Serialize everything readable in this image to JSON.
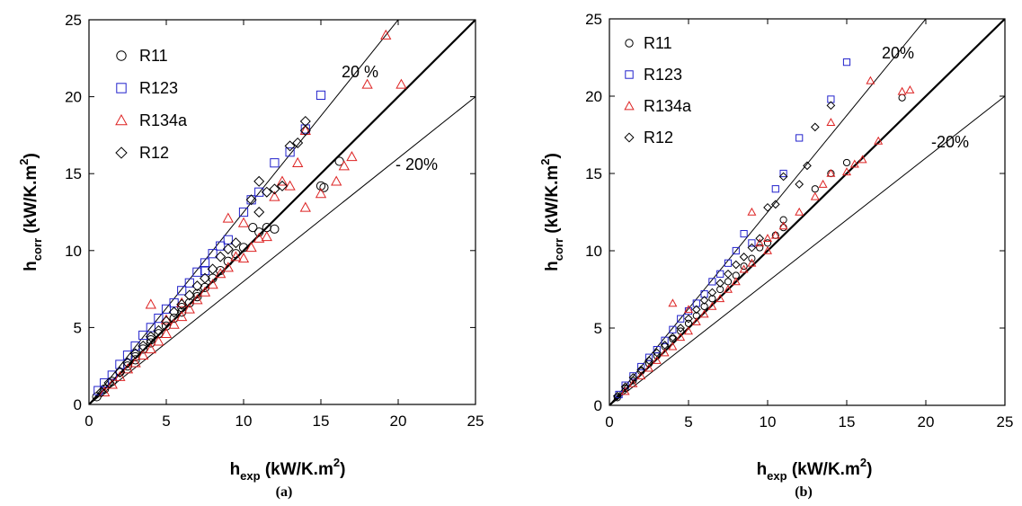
{
  "chart_data": [
    {
      "type": "scatter",
      "panel_label": "(a)",
      "xlabel": {
        "main": "h",
        "sub": "exp",
        "unit": " (kW/K.m",
        "sup": "2",
        "close": ")"
      },
      "ylabel": {
        "main": "h",
        "sub": "corr",
        "unit": " (kW/K.m",
        "sup": "2",
        "close": ")"
      },
      "xlim": [
        0,
        25
      ],
      "ylim": [
        0,
        25
      ],
      "xticks": [
        "0",
        "5",
        "10",
        "15",
        "20",
        "25"
      ],
      "yticks": [
        "0",
        "5",
        "10",
        "15",
        "20",
        "25"
      ],
      "grid": false,
      "legend_placement": "top-left",
      "reference_lines": [
        {
          "slope": 1.0,
          "style": "thick"
        },
        {
          "slope": 1.25,
          "style": "thin",
          "label": "20 %"
        },
        {
          "slope": 0.8,
          "style": "thin",
          "label": "- 20%"
        }
      ],
      "series": [
        {
          "name": "R11",
          "marker": "circle",
          "color": "#000000",
          "points": [
            [
              0.5,
              0.5
            ],
            [
              1,
              1
            ],
            [
              1.5,
              1.5
            ],
            [
              2,
              2.1
            ],
            [
              2.5,
              2.5
            ],
            [
              3,
              3.1
            ],
            [
              3.5,
              3.6
            ],
            [
              4,
              4
            ],
            [
              4.5,
              4.6
            ],
            [
              5,
              5.1
            ],
            [
              5.5,
              5.6
            ],
            [
              6,
              6.3
            ],
            [
              6.5,
              6.6
            ],
            [
              7,
              7.2
            ],
            [
              7.5,
              7.6
            ],
            [
              8,
              8.2
            ],
            [
              8.5,
              8.7
            ],
            [
              9,
              9.3
            ],
            [
              9.5,
              9.8
            ],
            [
              10,
              10.2
            ],
            [
              10.6,
              11.5
            ],
            [
              11,
              11.2
            ],
            [
              11.5,
              11.5
            ],
            [
              12,
              11.4
            ],
            [
              15,
              14.2
            ],
            [
              15.2,
              14.1
            ],
            [
              16.2,
              15.8
            ],
            [
              3,
              2.9
            ],
            [
              4,
              4.2
            ],
            [
              6,
              6
            ],
            [
              7,
              7
            ]
          ]
        },
        {
          "name": "R123",
          "marker": "square",
          "color": "#2222cc",
          "points": [
            [
              0.6,
              0.9
            ],
            [
              1,
              1.4
            ],
            [
              1.5,
              1.9
            ],
            [
              2,
              2.6
            ],
            [
              2.5,
              3.2
            ],
            [
              3,
              3.8
            ],
            [
              3.5,
              4.5
            ],
            [
              4,
              5
            ],
            [
              4.5,
              5.6
            ],
            [
              5,
              6.2
            ],
            [
              5.5,
              6.6
            ],
            [
              6,
              7.4
            ],
            [
              6.5,
              7.9
            ],
            [
              7,
              8.6
            ],
            [
              7.5,
              9.2
            ],
            [
              8,
              9.8
            ],
            [
              8.5,
              10.3
            ],
            [
              9,
              10.7
            ],
            [
              10,
              12.5
            ],
            [
              10.5,
              13.3
            ],
            [
              11,
              13.8
            ],
            [
              12,
              15.7
            ],
            [
              13,
              16.4
            ],
            [
              14,
              17.9
            ],
            [
              15,
              20.1
            ],
            [
              7.5,
              8.7
            ]
          ]
        },
        {
          "name": "R134a",
          "marker": "triangle",
          "color": "#dd2222",
          "points": [
            [
              1,
              0.8
            ],
            [
              1.5,
              1.3
            ],
            [
              2,
              1.8
            ],
            [
              2.5,
              2.3
            ],
            [
              3,
              2.7
            ],
            [
              3.5,
              3.2
            ],
            [
              4,
              3.6
            ],
            [
              4.5,
              4.1
            ],
            [
              5,
              4.6
            ],
            [
              5.5,
              5.2
            ],
            [
              6,
              5.7
            ],
            [
              6.5,
              6.2
            ],
            [
              7,
              6.8
            ],
            [
              7.5,
              7.3
            ],
            [
              8,
              7.8
            ],
            [
              8.5,
              8.5
            ],
            [
              9,
              8.9
            ],
            [
              9.5,
              9.6
            ],
            [
              10,
              9.5
            ],
            [
              10.5,
              10.2
            ],
            [
              11,
              10.8
            ],
            [
              11.5,
              10.9
            ],
            [
              12,
              13.5
            ],
            [
              12.5,
              14.5
            ],
            [
              13,
              14.2
            ],
            [
              14,
              12.8
            ],
            [
              15,
              13.7
            ],
            [
              16,
              14.5
            ],
            [
              16.5,
              15.5
            ],
            [
              17,
              16.1
            ],
            [
              18,
              20.8
            ],
            [
              19.2,
              24
            ],
            [
              20.2,
              20.8
            ],
            [
              4,
              6.5
            ],
            [
              5,
              5.5
            ],
            [
              6,
              6.6
            ],
            [
              9,
              12.1
            ],
            [
              10,
              11.8
            ],
            [
              13.5,
              15.7
            ],
            [
              14,
              17.8
            ]
          ]
        },
        {
          "name": "R12",
          "marker": "diamond",
          "color": "#000000",
          "points": [
            [
              0.8,
              0.8
            ],
            [
              1.3,
              1.4
            ],
            [
              2,
              2.1
            ],
            [
              2.5,
              2.7
            ],
            [
              3,
              3.3
            ],
            [
              3.5,
              3.8
            ],
            [
              4,
              4.4
            ],
            [
              4.5,
              4.8
            ],
            [
              5,
              5.4
            ],
            [
              5.5,
              6
            ],
            [
              6,
              6.5
            ],
            [
              6.5,
              7.1
            ],
            [
              7,
              7.7
            ],
            [
              7.5,
              8.2
            ],
            [
              8,
              8.8
            ],
            [
              8.5,
              9.6
            ],
            [
              9,
              10.1
            ],
            [
              9.5,
              10.5
            ],
            [
              10.5,
              13.3
            ],
            [
              11,
              14.5
            ],
            [
              11.5,
              13.8
            ],
            [
              12,
              14
            ],
            [
              12.5,
              14.2
            ],
            [
              13,
              16.8
            ],
            [
              13.5,
              17
            ],
            [
              14,
              18.4
            ],
            [
              14,
              17.8
            ],
            [
              11,
              12.5
            ]
          ]
        }
      ]
    },
    {
      "type": "scatter",
      "panel_label": "(b)",
      "xlabel": {
        "main": "h",
        "sub": "exp",
        "unit": " (kW/K.m",
        "sup": "2",
        "close": ")"
      },
      "ylabel": {
        "main": "h",
        "sub": "corr",
        "unit": " (kW/K.m",
        "sup": "2",
        "close": ")"
      },
      "xlim": [
        0,
        25
      ],
      "ylim": [
        0,
        25
      ],
      "xticks": [
        "0",
        "5",
        "10",
        "15",
        "20",
        "25"
      ],
      "yticks": [
        "0",
        "5",
        "10",
        "15",
        "20",
        "25"
      ],
      "grid": false,
      "legend_placement": "top-left",
      "reference_lines": [
        {
          "slope": 1.0,
          "style": "thick"
        },
        {
          "slope": 1.25,
          "style": "thin",
          "label": "20%"
        },
        {
          "slope": 0.8,
          "style": "thin",
          "label": "-20%"
        }
      ],
      "series": [
        {
          "name": "R11",
          "marker": "circle",
          "color": "#000000",
          "points": [
            [
              0.5,
              0.5
            ],
            [
              1,
              1.1
            ],
            [
              1.5,
              1.6
            ],
            [
              2,
              2.2
            ],
            [
              2.5,
              2.7
            ],
            [
              3,
              3.2
            ],
            [
              3.5,
              3.8
            ],
            [
              4,
              4.3
            ],
            [
              4.5,
              4.8
            ],
            [
              5,
              5.3
            ],
            [
              5.5,
              5.8
            ],
            [
              6,
              6.4
            ],
            [
              6.5,
              6.9
            ],
            [
              7,
              7.5
            ],
            [
              7.5,
              8
            ],
            [
              8,
              8.4
            ],
            [
              8.5,
              9
            ],
            [
              9,
              9.5
            ],
            [
              9.5,
              10.2
            ],
            [
              10,
              10.5
            ],
            [
              10.5,
              11
            ],
            [
              11,
              12
            ],
            [
              11,
              11.5
            ],
            [
              13,
              14
            ],
            [
              14,
              15
            ],
            [
              15,
              15.7
            ],
            [
              18.5,
              19.9
            ]
          ]
        },
        {
          "name": "R123",
          "marker": "square",
          "color": "#2222cc",
          "points": [
            [
              0.6,
              0.7
            ],
            [
              1,
              1.3
            ],
            [
              1.5,
              1.9
            ],
            [
              2,
              2.5
            ],
            [
              2.5,
              3.1
            ],
            [
              3,
              3.6
            ],
            [
              3.5,
              4.2
            ],
            [
              4,
              4.9
            ],
            [
              4.5,
              5.6
            ],
            [
              5,
              6.1
            ],
            [
              5.5,
              6.6
            ],
            [
              6,
              7.2
            ],
            [
              6.5,
              8
            ],
            [
              7,
              8.5
            ],
            [
              7.5,
              9.2
            ],
            [
              8,
              10
            ],
            [
              8.5,
              11.1
            ],
            [
              9,
              10.5
            ],
            [
              10.5,
              14
            ],
            [
              11,
              15
            ],
            [
              12,
              17.3
            ],
            [
              14,
              19.8
            ],
            [
              15,
              22.2
            ]
          ]
        },
        {
          "name": "R134a",
          "marker": "triangle",
          "color": "#dd2222",
          "points": [
            [
              1,
              0.9
            ],
            [
              1.5,
              1.4
            ],
            [
              2,
              1.9
            ],
            [
              2.5,
              2.4
            ],
            [
              3,
              2.9
            ],
            [
              3.5,
              3.4
            ],
            [
              4,
              3.8
            ],
            [
              4.5,
              4.4
            ],
            [
              5,
              4.8
            ],
            [
              5.5,
              5.4
            ],
            [
              6,
              5.9
            ],
            [
              6.5,
              6.4
            ],
            [
              7,
              6.9
            ],
            [
              7.5,
              7.5
            ],
            [
              8,
              8
            ],
            [
              8.5,
              8.8
            ],
            [
              9,
              9.2
            ],
            [
              9.5,
              10.5
            ],
            [
              10,
              10
            ],
            [
              10.5,
              11
            ],
            [
              11,
              11.6
            ],
            [
              12,
              12.5
            ],
            [
              13,
              13.5
            ],
            [
              13.5,
              14.3
            ],
            [
              14,
              15
            ],
            [
              15,
              15.1
            ],
            [
              15.5,
              15.6
            ],
            [
              16,
              15.9
            ],
            [
              16.5,
              21
            ],
            [
              17,
              17.1
            ],
            [
              18.5,
              20.3
            ],
            [
              19,
              20.4
            ],
            [
              14,
              18.3
            ],
            [
              4,
              6.6
            ],
            [
              5,
              6.2
            ],
            [
              9,
              12.5
            ],
            [
              10,
              10.8
            ]
          ]
        },
        {
          "name": "R12",
          "marker": "diamond",
          "color": "#000000",
          "points": [
            [
              0.5,
              0.6
            ],
            [
              1,
              1.2
            ],
            [
              1.5,
              1.8
            ],
            [
              2,
              2.3
            ],
            [
              2.5,
              2.9
            ],
            [
              3,
              3.4
            ],
            [
              3.5,
              3.9
            ],
            [
              4,
              4.4
            ],
            [
              4.5,
              5
            ],
            [
              5,
              5.6
            ],
            [
              5.5,
              6.2
            ],
            [
              6,
              6.8
            ],
            [
              6.5,
              7.3
            ],
            [
              7,
              7.9
            ],
            [
              7.5,
              8.5
            ],
            [
              8,
              9.1
            ],
            [
              8.5,
              9.6
            ],
            [
              9,
              10.2
            ],
            [
              9.5,
              10.8
            ],
            [
              10,
              12.8
            ],
            [
              10.5,
              13
            ],
            [
              11,
              14.8
            ],
            [
              12,
              14.3
            ],
            [
              12.5,
              15.5
            ],
            [
              13,
              18
            ],
            [
              14,
              19.4
            ]
          ]
        }
      ]
    }
  ]
}
